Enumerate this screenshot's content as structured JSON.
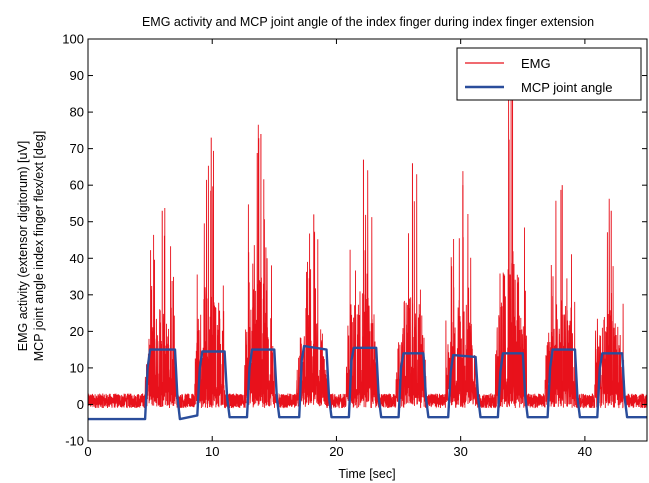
{
  "chart_data": {
    "type": "line",
    "title": "EMG activity and MCP joint angle of the index finger during index finger extension",
    "xlabel": "Time [sec]",
    "ylabel_line1": "EMG activity (extensor digitorum) [uV]",
    "ylabel_line2": "MCP joint angle index finger flex/ext [deg]",
    "xlim": [
      0,
      45
    ],
    "ylim": [
      -10,
      100
    ],
    "xticks": [
      0,
      10,
      20,
      30,
      40
    ],
    "xtick_labels": [
      "0",
      "10",
      "20",
      "30",
      "40"
    ],
    "yticks": [
      -10,
      0,
      10,
      20,
      30,
      40,
      50,
      60,
      70,
      80,
      90,
      100
    ],
    "ytick_labels": [
      "-10",
      "0",
      "10",
      "20",
      "30",
      "40",
      "50",
      "60",
      "70",
      "80",
      "90",
      "100"
    ],
    "grid": false,
    "legend": {
      "position": "top-right",
      "entries": [
        {
          "name": "EMG",
          "color": "#e8111b"
        },
        {
          "name": "MCP joint angle",
          "color": "#2a4d9b"
        }
      ]
    },
    "series": [
      {
        "name": "EMG",
        "color": "#e8111b",
        "baseline": [
          -1,
          3
        ],
        "bursts": [
          {
            "start": 4.6,
            "end": 7.1,
            "peak": 53
          },
          {
            "start": 8.6,
            "end": 11.0,
            "peak": 73
          },
          {
            "start": 12.6,
            "end": 15.0,
            "peak": 74
          },
          {
            "start": 16.8,
            "end": 19.3,
            "peak": 52
          },
          {
            "start": 20.8,
            "end": 23.3,
            "peak": 67
          },
          {
            "start": 24.8,
            "end": 27.2,
            "peak": 66
          },
          {
            "start": 28.8,
            "end": 31.3,
            "peak": 60
          },
          {
            "start": 32.8,
            "end": 35.3,
            "peak": 87
          },
          {
            "start": 36.8,
            "end": 39.3,
            "peak": 60
          },
          {
            "start": 40.8,
            "end": 43.2,
            "peak": 53
          }
        ]
      },
      {
        "name": "MCP joint angle",
        "color": "#2a4d9b",
        "x": [
          0,
          4.6,
          4.8,
          5.0,
          7.0,
          7.2,
          7.4,
          8.8,
          9.0,
          9.2,
          11.0,
          11.2,
          11.4,
          12.8,
          13.0,
          13.2,
          15.0,
          15.2,
          15.4,
          17.0,
          17.2,
          17.4,
          19.2,
          19.4,
          19.6,
          21.0,
          21.2,
          21.4,
          23.2,
          23.4,
          23.6,
          25.0,
          25.2,
          25.4,
          27.0,
          27.2,
          27.4,
          29.0,
          29.2,
          29.4,
          31.2,
          31.4,
          31.6,
          33.0,
          33.2,
          33.4,
          35.0,
          35.2,
          35.4,
          37.0,
          37.2,
          37.4,
          39.2,
          39.4,
          39.6,
          41.0,
          41.2,
          41.4,
          43.0,
          43.2,
          43.4,
          45.0
        ],
        "y": [
          -4,
          -4,
          10,
          15,
          15,
          2,
          -4,
          -3,
          10,
          14.5,
          14.5,
          2,
          -3.5,
          -3.5,
          10,
          15,
          15,
          2,
          -3.5,
          -3.5,
          12,
          16,
          15,
          2,
          -3.5,
          -3.5,
          12,
          15.5,
          15.5,
          2,
          -3.5,
          -3.5,
          10,
          14,
          14,
          2,
          -3.5,
          -3.5,
          9,
          13.5,
          13,
          2,
          -3.5,
          -3.5,
          9,
          14,
          14,
          2,
          -3.5,
          -3.5,
          10,
          15,
          15,
          2,
          -3.5,
          -3.5,
          10,
          14,
          14,
          2,
          -3.5,
          -3.5
        ]
      }
    ]
  }
}
